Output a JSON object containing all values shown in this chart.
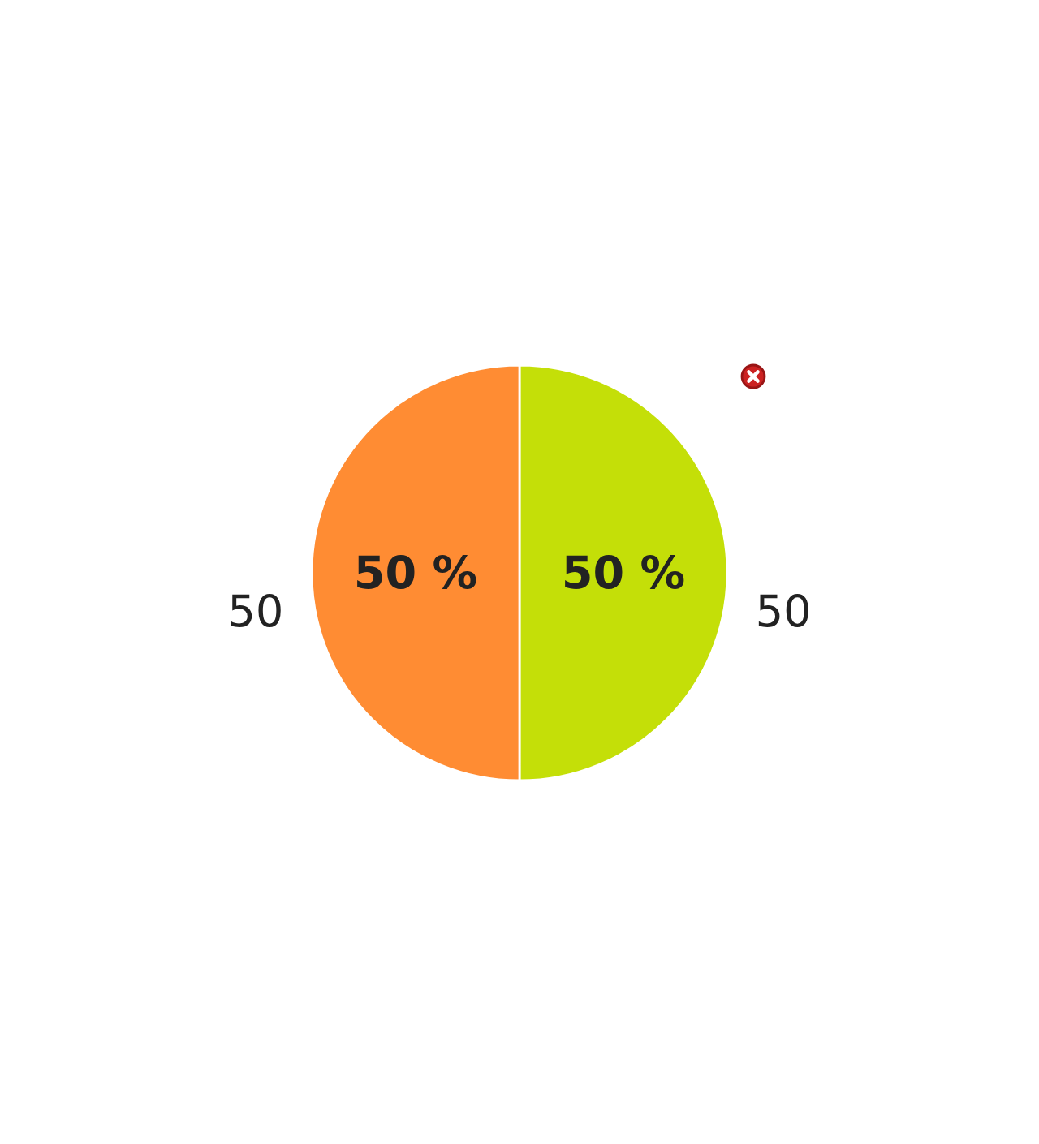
{
  "chart_data": {
    "type": "pie",
    "categories": [
      null,
      null
    ],
    "values": [
      50,
      50
    ],
    "colors": [
      "#c4df08",
      "#ff8c33"
    ],
    "data_labels": true,
    "annotations": [
      "50 %",
      "50 %"
    ]
  }
}
